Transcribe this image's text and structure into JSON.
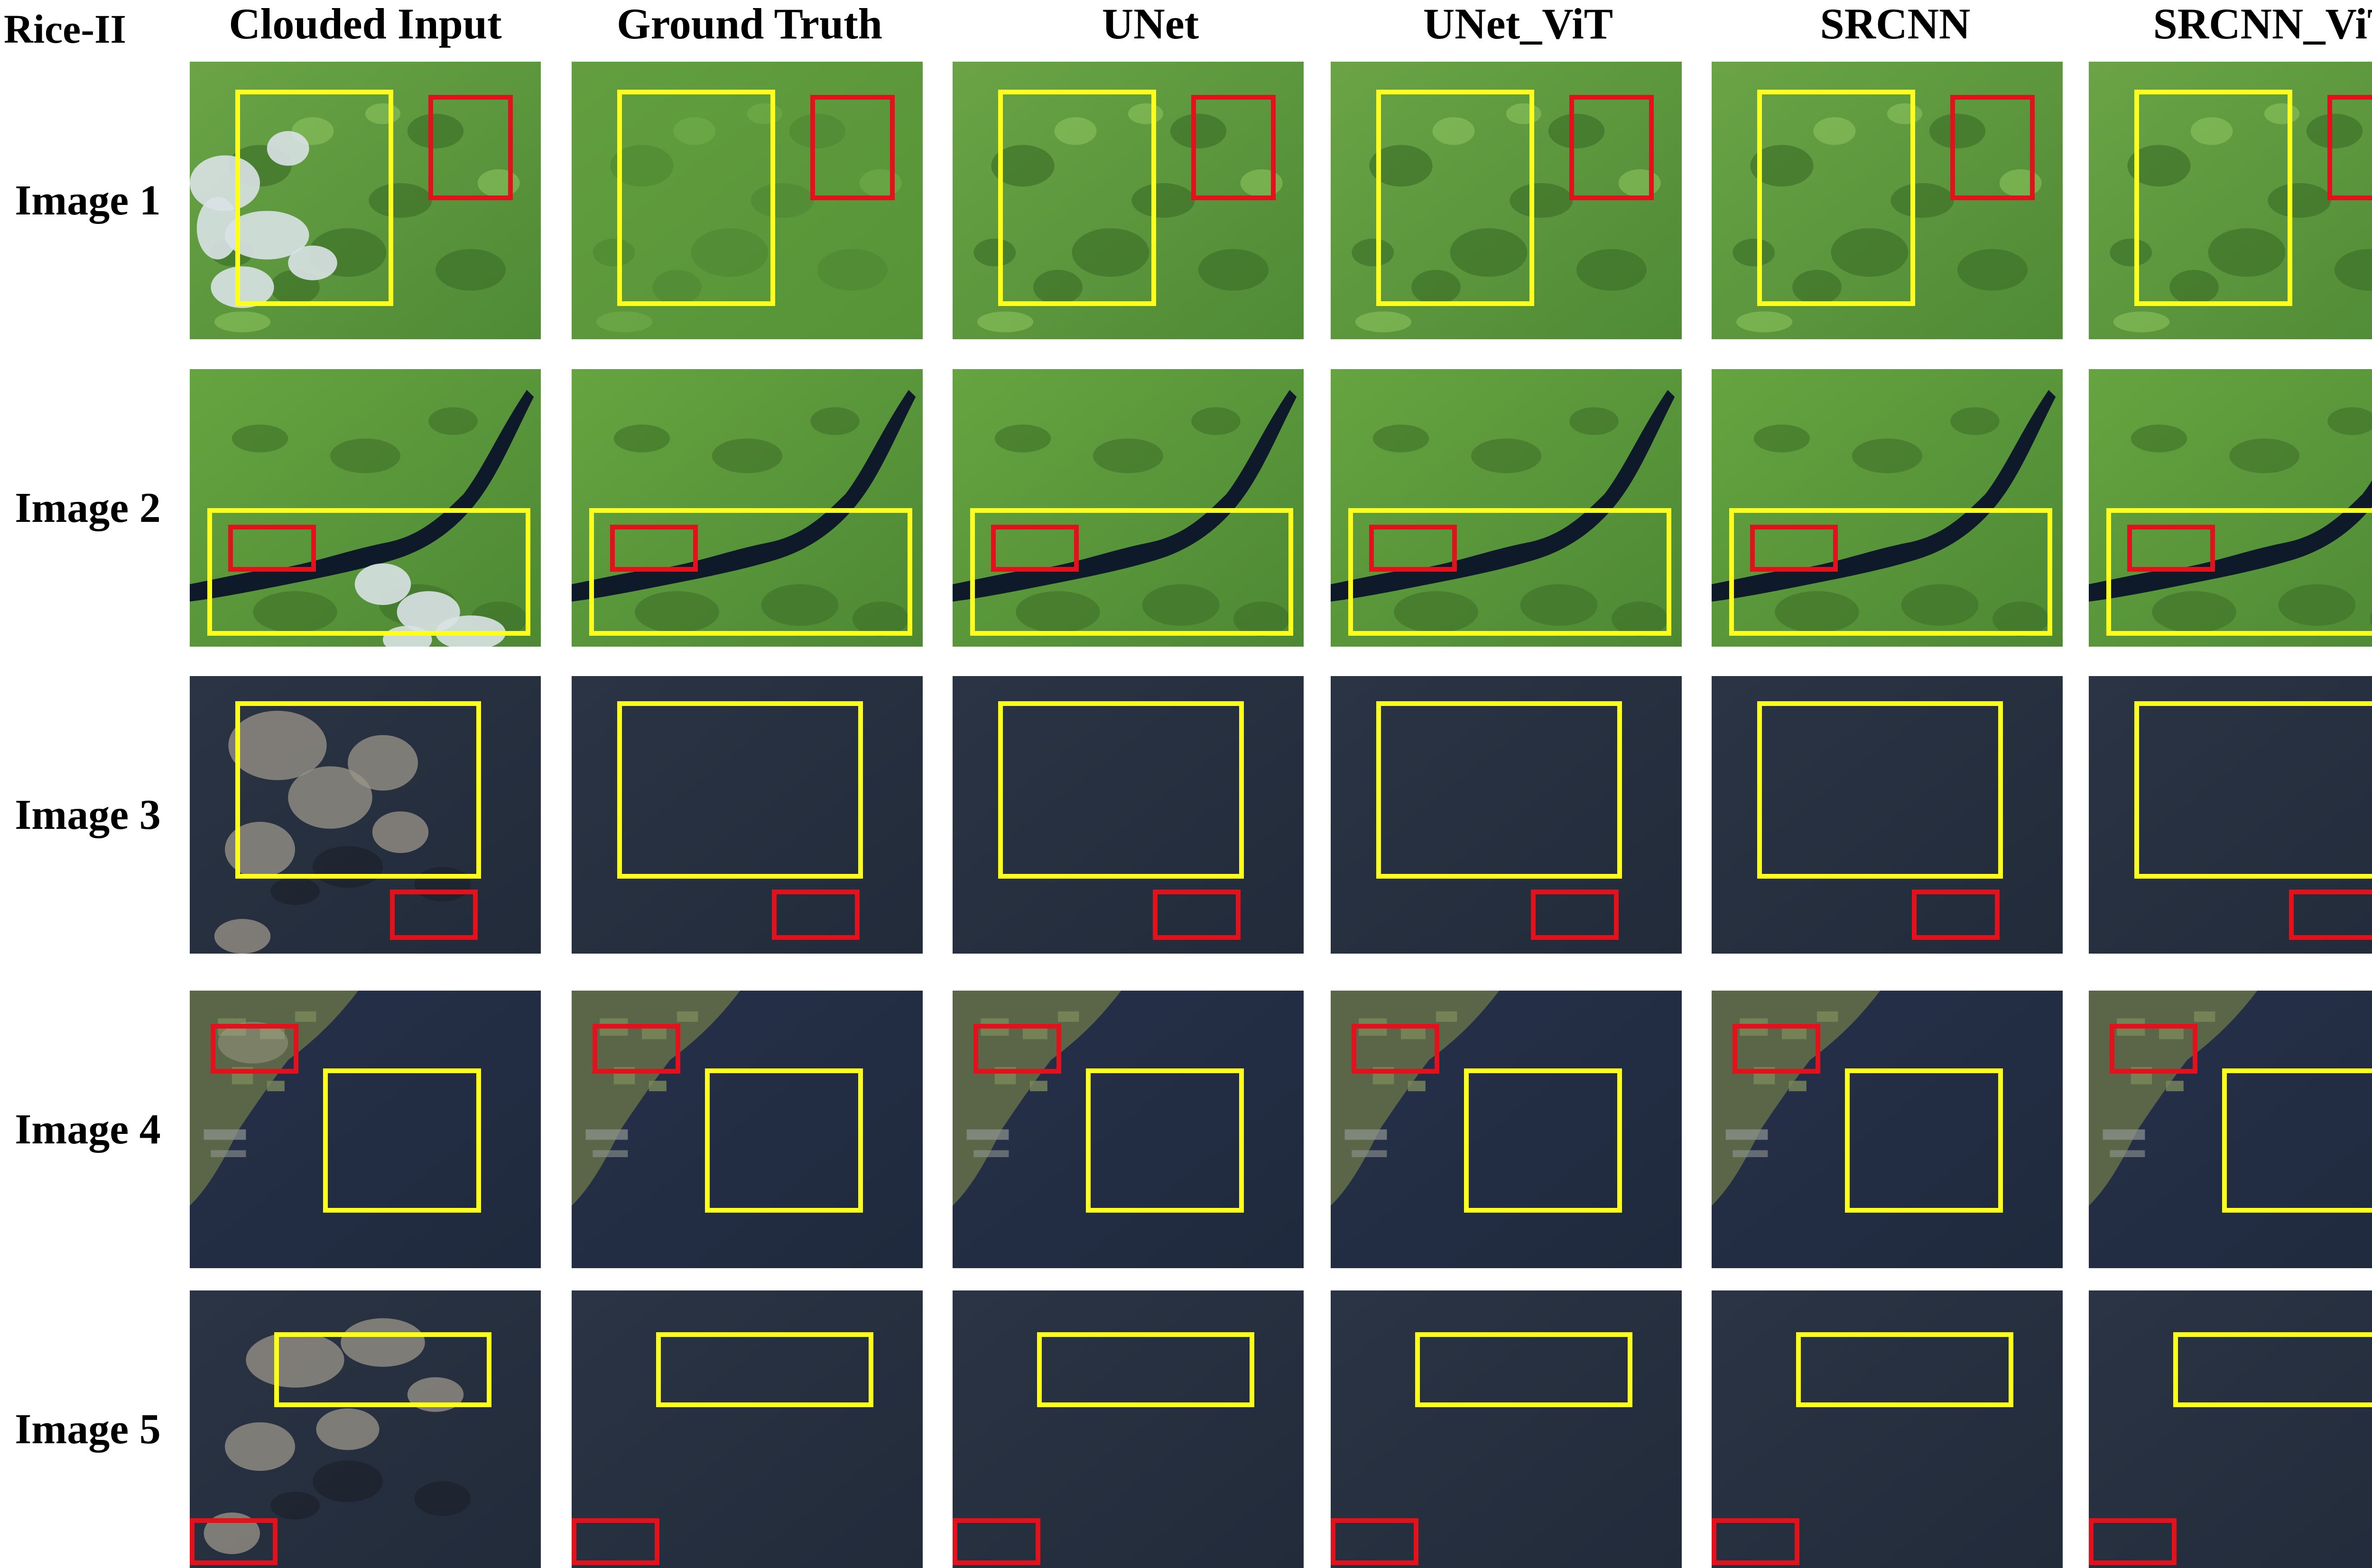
{
  "figure": {
    "dataset_label": "Rice-II",
    "columns": [
      {
        "label": "Clouded Input",
        "kind": "cloudy"
      },
      {
        "label": "Ground Truth",
        "kind": "truth"
      },
      {
        "label": "UNet",
        "kind": "recon"
      },
      {
        "label": "UNet_ViT",
        "kind": "recon"
      },
      {
        "label": "SRCNN",
        "kind": "recon"
      },
      {
        "label": "SRCNN_ViT",
        "kind": "recon"
      }
    ],
    "rows": [
      {
        "label": "Image 1",
        "scene": "vegetation"
      },
      {
        "label": "Image 2",
        "scene": "river"
      },
      {
        "label": "Image 3",
        "scene": "water"
      },
      {
        "label": "Image 4",
        "scene": "coast"
      },
      {
        "label": "Image 5",
        "scene": "water"
      }
    ],
    "colors": {
      "highlight_box_yellow": "#ffff1e",
      "highlight_box_red": "#e3111b",
      "vegetation_green": "#5f9a3c",
      "water_dark": "#262f3f",
      "river_dark": "#0e1a2a",
      "cloud_white": "#d9e2e6"
    }
  }
}
